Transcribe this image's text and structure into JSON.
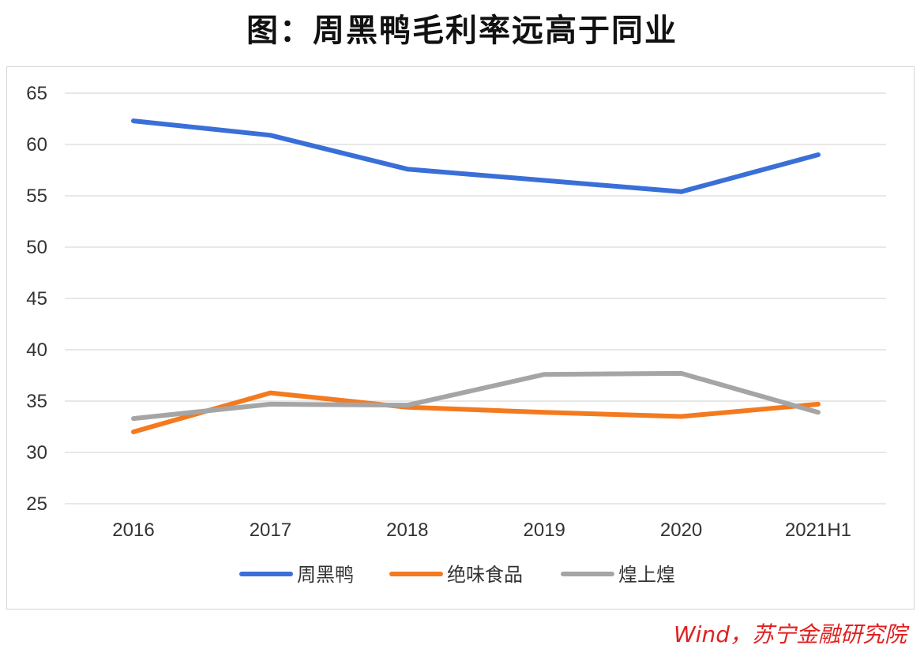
{
  "title": "图：周黑鸭毛利率远高于同业",
  "source": "Wind，苏宁金融研究院",
  "chart_data": {
    "type": "line",
    "title": "图：周黑鸭毛利率远高于同业",
    "xlabel": "",
    "ylabel": "",
    "categories": [
      "2016",
      "2017",
      "2018",
      "2019",
      "2020",
      "2021H1"
    ],
    "ylim": [
      25,
      65
    ],
    "yticks": [
      25,
      30,
      35,
      40,
      45,
      50,
      55,
      60,
      65
    ],
    "grid": true,
    "legend_position": "bottom",
    "series": [
      {
        "name": "周黑鸭",
        "color": "#3a6fd8",
        "values": [
          62.3,
          60.9,
          57.6,
          56.5,
          55.4,
          59.0
        ]
      },
      {
        "name": "绝味食品",
        "color": "#f47a20",
        "values": [
          32.0,
          35.8,
          34.4,
          33.9,
          33.5,
          34.7
        ]
      },
      {
        "name": "煌上煌",
        "color": "#a5a5a5",
        "values": [
          33.3,
          34.7,
          34.6,
          37.6,
          37.7,
          33.9
        ]
      }
    ]
  }
}
